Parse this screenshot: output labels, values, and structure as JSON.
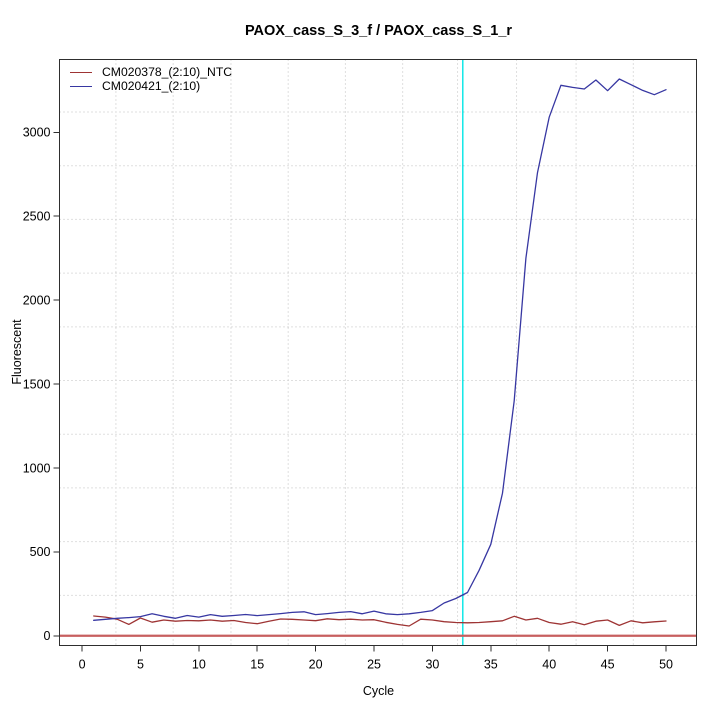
{
  "chart_data": {
    "type": "line",
    "title": "PAOX_cass_S_3_f / PAOX_cass_S_1_r",
    "xlabel": "Cycle",
    "ylabel": "Fluorescent",
    "x_ticks": [
      0,
      5,
      10,
      15,
      20,
      25,
      30,
      35,
      40,
      45,
      50
    ],
    "y_ticks": [
      0,
      500,
      1000,
      1500,
      2000,
      2500,
      3000
    ],
    "xlim": [
      -1.93,
      52.61
    ],
    "ylim": [
      -58,
      3434
    ],
    "grid": {
      "style": "dotted",
      "color": "#bfbfbf",
      "x_lines": [
        2.9,
        7.8,
        12.75,
        17.65,
        22.55,
        27.45,
        32.15,
        37.2,
        42.3,
        47.2
      ],
      "y_lines": [
        241,
        561,
        881,
        1201,
        1521,
        1841,
        2161,
        2481,
        2801,
        3121
      ]
    },
    "threshold_line": {
      "orientation": "horizontal",
      "y": 0,
      "color": "#c75f5f"
    },
    "ct_line": {
      "orientation": "vertical",
      "x": 32.6,
      "color": "#00e6e6"
    },
    "x": [
      1,
      2,
      3,
      4,
      5,
      6,
      7,
      8,
      9,
      10,
      11,
      12,
      13,
      14,
      15,
      16,
      17,
      18,
      19,
      20,
      21,
      22,
      23,
      24,
      25,
      26,
      27,
      28,
      29,
      30,
      31,
      32,
      33,
      34,
      35,
      36,
      37,
      38,
      39,
      40,
      41,
      42,
      43,
      44,
      45,
      46,
      47,
      48,
      49,
      50
    ],
    "series": [
      {
        "name": "CM020378_(2:10)_NTC",
        "color": "#9e3434",
        "values": [
          118,
          111,
          99,
          68,
          106,
          81,
          94,
          87,
          91,
          89,
          94,
          87,
          91,
          79,
          72,
          86,
          100,
          98,
          94,
          90,
          101,
          96,
          99,
          94,
          96,
          80,
          68,
          58,
          99,
          94,
          84,
          79,
          77,
          79,
          84,
          89,
          116,
          94,
          104,
          79,
          69,
          84,
          66,
          87,
          94,
          62,
          89,
          77,
          83,
          88
        ]
      },
      {
        "name": "CM020421_(2:10)",
        "color": "#3737a2",
        "values": [
          92,
          98,
          104,
          108,
          114,
          131,
          116,
          104,
          121,
          111,
          126,
          116,
          121,
          127,
          120,
          126,
          132,
          139,
          143,
          126,
          132,
          139,
          144,
          131,
          147,
          131,
          126,
          131,
          139,
          150,
          195,
          222,
          258,
          390,
          545,
          850,
          1400,
          2250,
          2760,
          3090,
          3280,
          3268,
          3258,
          3312,
          3248,
          3318,
          3284,
          3250,
          3224,
          3254
        ]
      }
    ],
    "legend_position": "top-left"
  }
}
